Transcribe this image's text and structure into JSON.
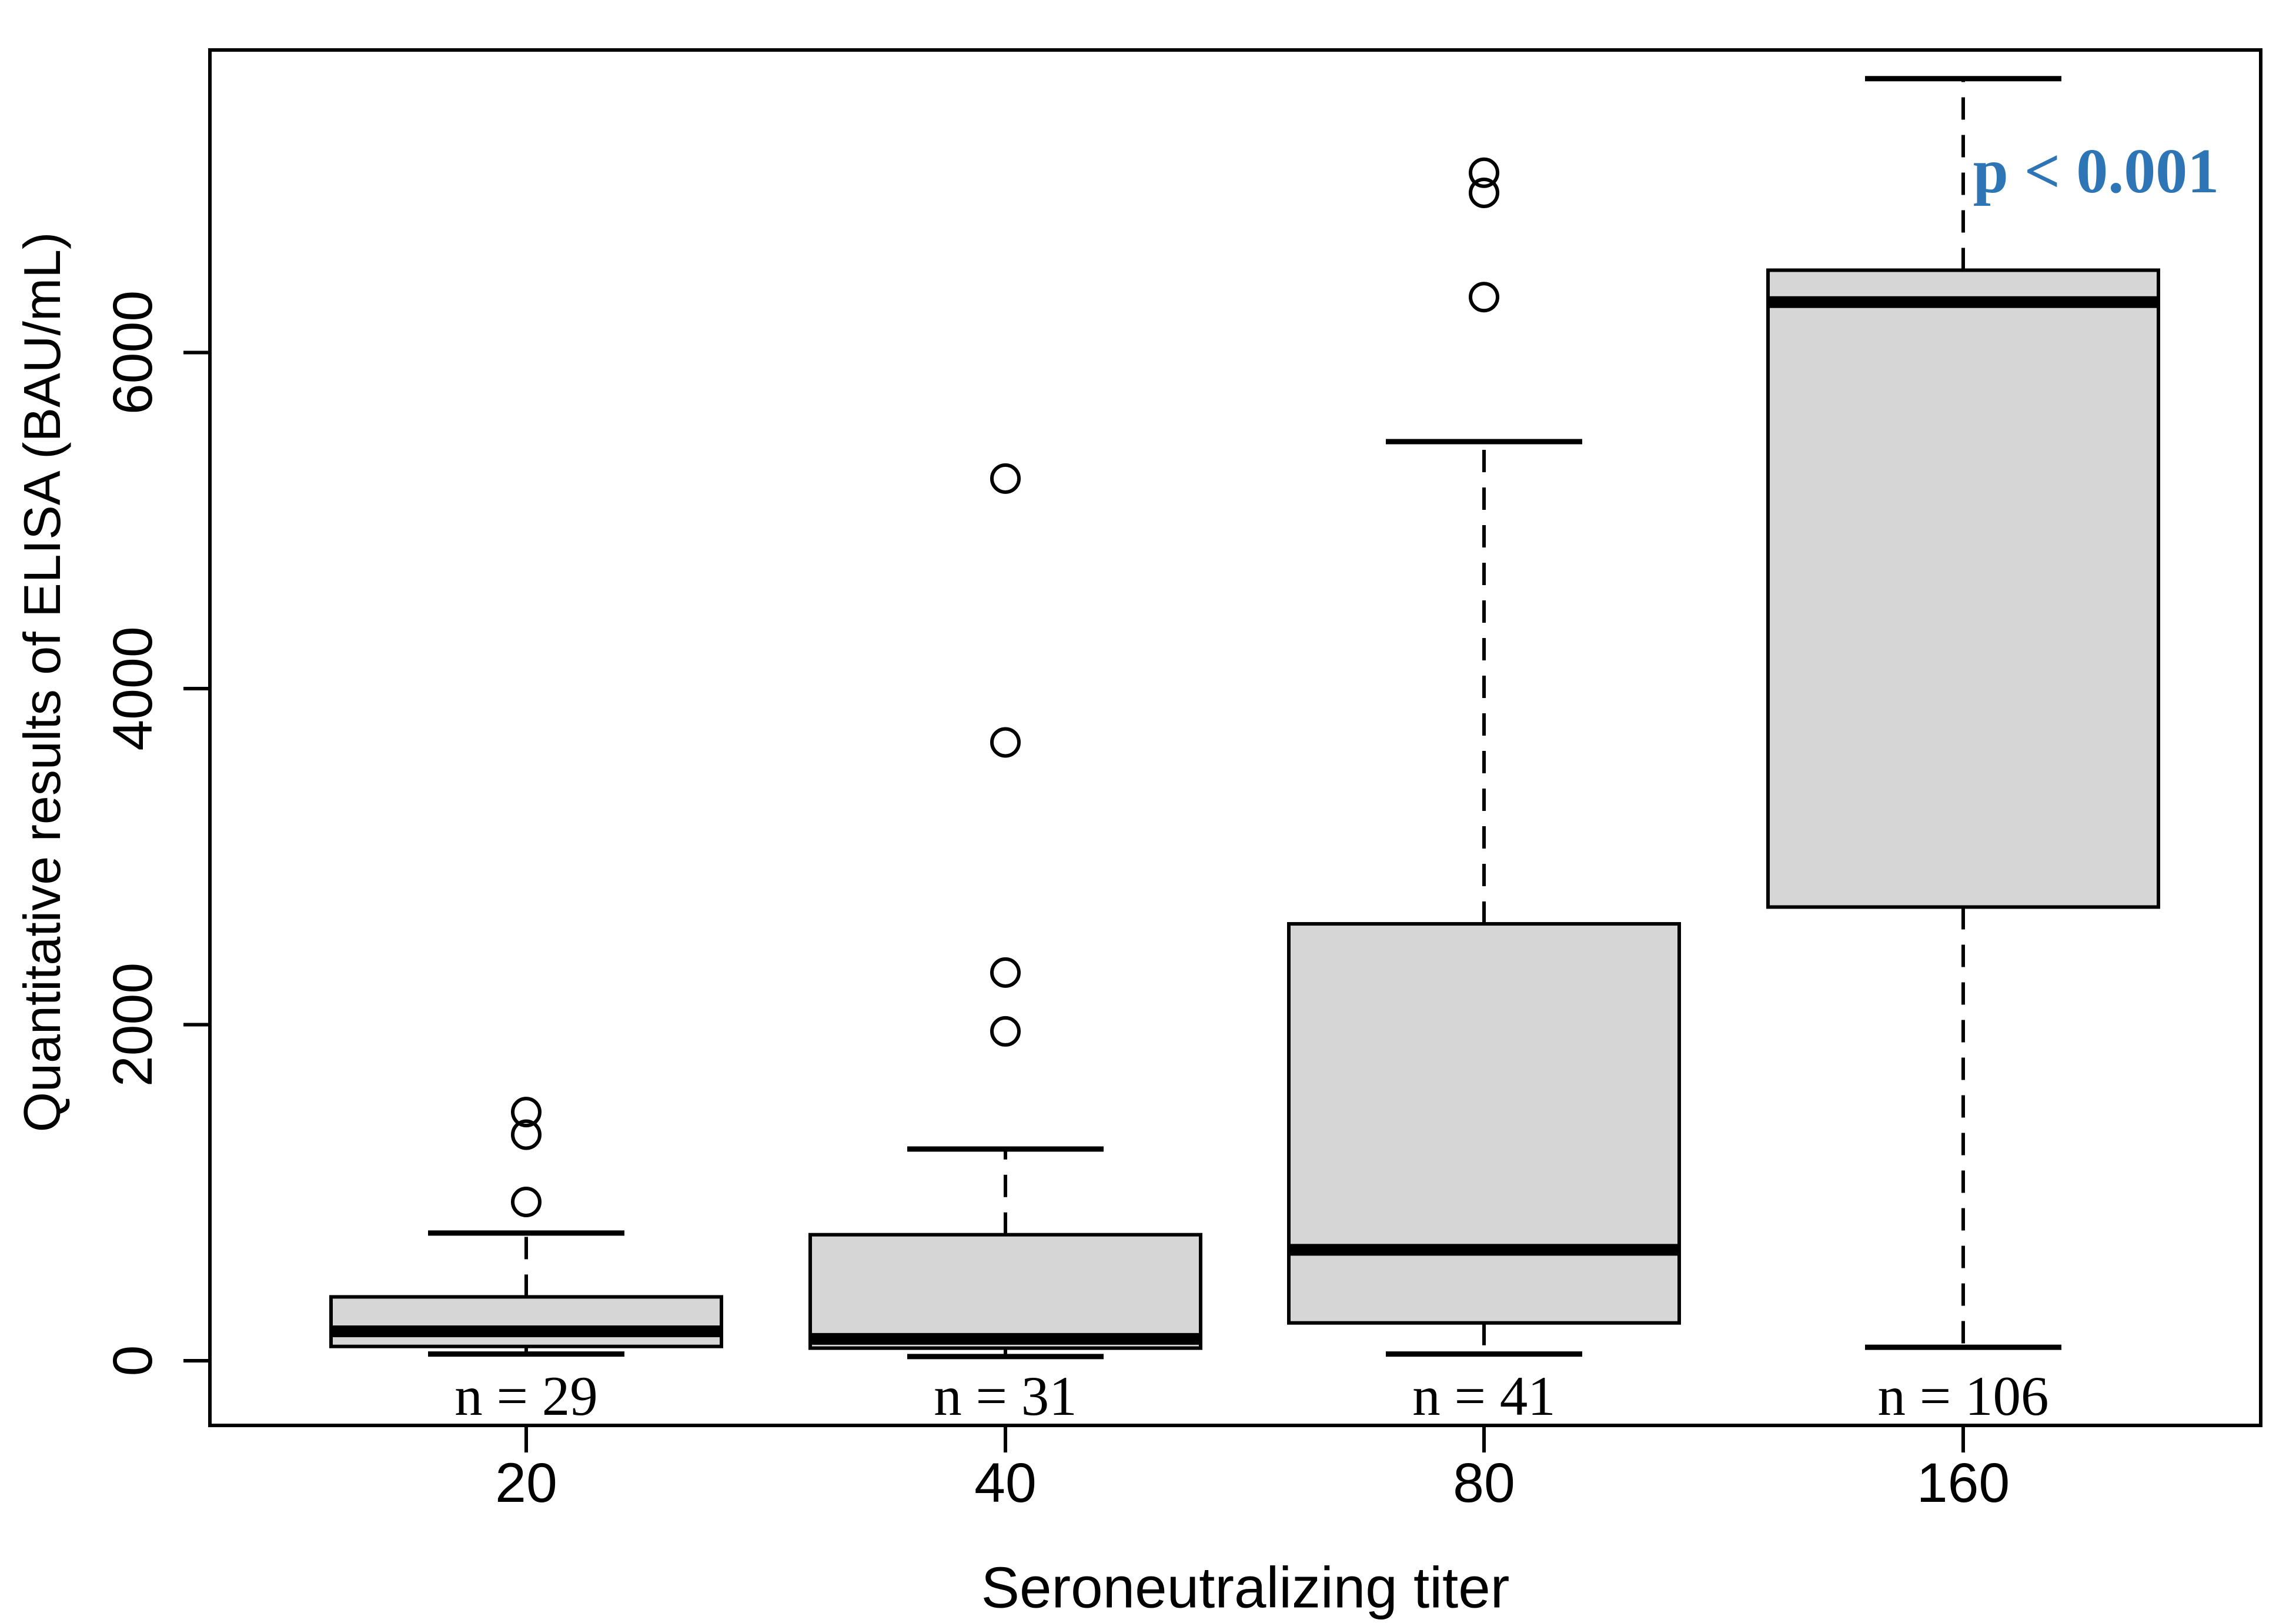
{
  "figure": {
    "p_annotation": {
      "text": "p < 0.001",
      "color": "#2E75B6"
    },
    "x_axis": {
      "title": "Seroneutralizing titer"
    },
    "y_axis": {
      "title": "Quantitative results of ELISA (BAU/mL)"
    }
  },
  "chart_data": {
    "type": "boxplot",
    "title": "",
    "xlabel": "Seroneutralizing titer",
    "ylabel": "Quantitative results of ELISA (BAU/mL)",
    "categories": [
      "20",
      "40",
      "80",
      "160"
    ],
    "y_ticks": [
      0,
      2000,
      4000,
      6000
    ],
    "y_tick_labels": [
      "0",
      "2000",
      "4000",
      "6000"
    ],
    "ylim": [
      -385,
      7800
    ],
    "grid": false,
    "legend": "none",
    "box_fill": "#d6d6d6",
    "line_color": "#000000",
    "groups": [
      {
        "category": "20",
        "n": 29,
        "n_label": "n = 29",
        "whisker_low": 40,
        "q1": 85,
        "median": 175,
        "q3": 380,
        "whisker_high": 760,
        "outliers": [
          945,
          1345,
          1480
        ]
      },
      {
        "category": "40",
        "n": 31,
        "n_label": "n = 31",
        "whisker_low": 25,
        "q1": 75,
        "median": 130,
        "q3": 750,
        "whisker_high": 1260,
        "outliers": [
          1960,
          2310,
          3680,
          5250
        ]
      },
      {
        "category": "80",
        "n": 41,
        "n_label": "n = 41",
        "whisker_low": 40,
        "q1": 225,
        "median": 660,
        "q3": 2600,
        "whisker_high": 5470,
        "outliers": [
          6330,
          6950,
          7070
        ]
      },
      {
        "category": "160",
        "n": 106,
        "n_label": "n = 106",
        "whisker_low": 80,
        "q1": 2700,
        "median": 6300,
        "q3": 6490,
        "whisker_high": 7630,
        "outliers": []
      }
    ],
    "annotation": {
      "text": "p < 0.001",
      "color": "#2E75B6"
    }
  }
}
